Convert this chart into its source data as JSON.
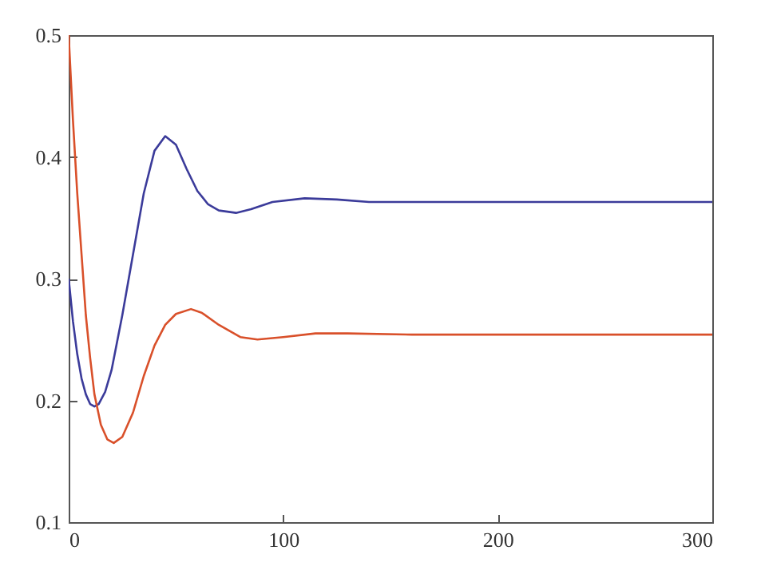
{
  "chart_data": {
    "type": "line",
    "xlim": [
      0,
      300
    ],
    "xticks": [
      0,
      100,
      200,
      300
    ],
    "ylim": [
      0.1,
      0.5
    ],
    "yticks": [
      0.1,
      0.2,
      0.3,
      0.4,
      0.5
    ],
    "grid": false,
    "line_style": "solid",
    "series": [
      {
        "color": "#3b3b9a",
        "x": [
          0,
          2,
          4,
          6,
          8,
          10,
          12,
          14,
          17,
          20,
          25,
          30,
          35,
          40,
          45,
          50,
          55,
          60,
          65,
          70,
          78,
          85,
          95,
          110,
          125,
          140,
          160,
          200,
          300
        ],
        "values": [
          0.3,
          0.265,
          0.238,
          0.218,
          0.205,
          0.197,
          0.195,
          0.197,
          0.207,
          0.225,
          0.27,
          0.32,
          0.37,
          0.405,
          0.417,
          0.41,
          0.39,
          0.372,
          0.361,
          0.356,
          0.354,
          0.357,
          0.363,
          0.366,
          0.365,
          0.363,
          0.363,
          0.363,
          0.363
        ]
      },
      {
        "color": "#d9502a",
        "x": [
          0,
          2,
          4,
          6,
          8,
          10,
          12,
          15,
          18,
          21,
          25,
          30,
          35,
          40,
          45,
          50,
          57,
          62,
          70,
          80,
          88,
          100,
          115,
          130,
          160,
          300
        ],
        "values": [
          0.5,
          0.43,
          0.37,
          0.32,
          0.27,
          0.235,
          0.205,
          0.18,
          0.168,
          0.165,
          0.17,
          0.19,
          0.22,
          0.245,
          0.262,
          0.271,
          0.275,
          0.272,
          0.262,
          0.252,
          0.25,
          0.252,
          0.255,
          0.255,
          0.254,
          0.254
        ]
      }
    ]
  }
}
